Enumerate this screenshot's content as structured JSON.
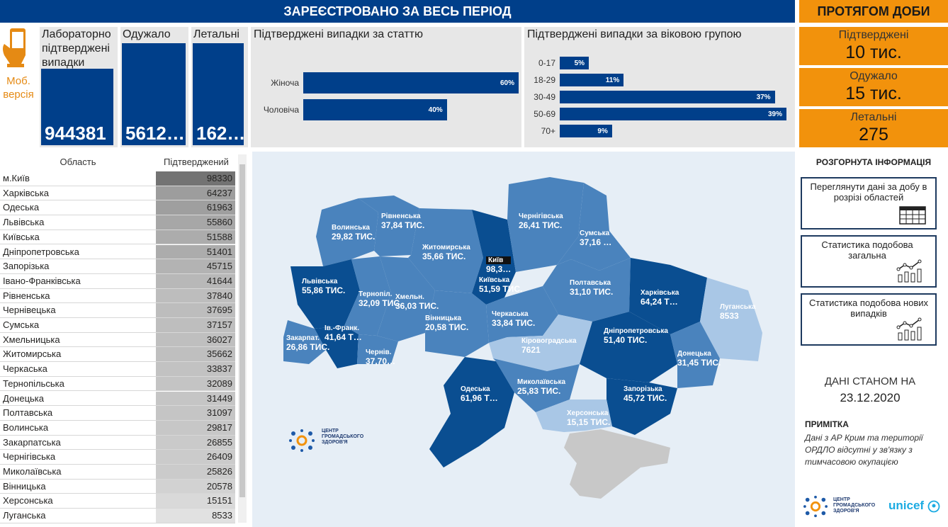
{
  "header": {
    "main_title": "ЗАРЕЄСТРОВАНО ЗА ВЕСЬ ПЕРІОД",
    "day_title": "ПРОТЯГОМ ДОБИ"
  },
  "mobile": {
    "label_line1": "Моб.",
    "label_line2": "версія"
  },
  "kpis": [
    {
      "label": "Лабораторно підтверджені випадки",
      "value": "944381"
    },
    {
      "label": "Одужало",
      "value": "5612…"
    },
    {
      "label": "Летальні",
      "value": "162…"
    }
  ],
  "sex_chart": {
    "title": "Підтверджені випадки за статтю",
    "chart_data": {
      "type": "bar",
      "orientation": "horizontal",
      "categories": [
        "Жіноча",
        "Чоловіча"
      ],
      "values": [
        60,
        40
      ],
      "labels": [
        "60%",
        "40%"
      ],
      "xlim": [
        0,
        60
      ]
    }
  },
  "age_chart": {
    "title": "Підтверджені випадки за віковою групою",
    "chart_data": {
      "type": "bar",
      "orientation": "horizontal",
      "categories": [
        "0-17",
        "18-29",
        "30-49",
        "50-69",
        "70+"
      ],
      "values": [
        5,
        11,
        37,
        39,
        9
      ],
      "labels": [
        "5%",
        "11%",
        "37%",
        "39%",
        "9%"
      ],
      "xlim": [
        0,
        39
      ]
    }
  },
  "daily": [
    {
      "label": "Підтверджені",
      "value": "10 тис."
    },
    {
      "label": "Одужало",
      "value": "15 тис."
    },
    {
      "label": "Летальні",
      "value": "275"
    }
  ],
  "table": {
    "col1": "Область",
    "col2": "Підтверджений",
    "rows": [
      {
        "name": "м.Київ",
        "value": "98330"
      },
      {
        "name": "Харківська",
        "value": "64237"
      },
      {
        "name": "Одеська",
        "value": "61963"
      },
      {
        "name": "Львівська",
        "value": "55860"
      },
      {
        "name": "Київська",
        "value": "51588"
      },
      {
        "name": "Дніпропетровська",
        "value": "51401"
      },
      {
        "name": "Запорізька",
        "value": "45715"
      },
      {
        "name": "Івано-Франківська",
        "value": "41644"
      },
      {
        "name": "Рівненська",
        "value": "37840"
      },
      {
        "name": "Чернівецька",
        "value": "37695"
      },
      {
        "name": "Сумська",
        "value": "37157"
      },
      {
        "name": "Хмельницька",
        "value": "36027"
      },
      {
        "name": "Житомирська",
        "value": "35662"
      },
      {
        "name": "Черкаська",
        "value": "33837"
      },
      {
        "name": "Тернопільська",
        "value": "32089"
      },
      {
        "name": "Донецька",
        "value": "31449"
      },
      {
        "name": "Полтавська",
        "value": "31097"
      },
      {
        "name": "Волинська",
        "value": "29817"
      },
      {
        "name": "Закарпатська",
        "value": "26855"
      },
      {
        "name": "Чернігівська",
        "value": "26409"
      },
      {
        "name": "Миколаївська",
        "value": "25826"
      },
      {
        "name": "Вінницька",
        "value": "20578"
      },
      {
        "name": "Херсонська",
        "value": "15151"
      },
      {
        "name": "Луганська",
        "value": "8533"
      }
    ]
  },
  "map": {
    "regions": [
      {
        "name": "Волинська",
        "value": "29,82 ТИС."
      },
      {
        "name": "Рівненська",
        "value": "37,84 ТИС."
      },
      {
        "name": "Житомирська",
        "value": "35,66 ТИС."
      },
      {
        "name": "Чернігівська",
        "value": "26,41 ТИС."
      },
      {
        "name": "Сумська",
        "value": "37,16 …"
      },
      {
        "name": "Київ",
        "value": "98,3…"
      },
      {
        "name": "Київська",
        "value": "51,59 ТИС."
      },
      {
        "name": "Полтавська",
        "value": "31,10 ТИС."
      },
      {
        "name": "Харківська",
        "value": "64,24 Т…"
      },
      {
        "name": "Луганська",
        "value": "8533"
      },
      {
        "name": "Львівська",
        "value": "55,86 ТИС."
      },
      {
        "name": "Тернопіл.",
        "value": "32,09 ТИС."
      },
      {
        "name": "Хмельн.",
        "value": "36,03 ТИС."
      },
      {
        "name": "Вінницька",
        "value": "20,58 ТИС."
      },
      {
        "name": "Черкаська",
        "value": "33,84 ТИС."
      },
      {
        "name": "Закарпат.",
        "value": "26,86 ТИС."
      },
      {
        "name": "Ів.-Франк.",
        "value": "41,64 Т…"
      },
      {
        "name": "Чернів.",
        "value": "37,70…"
      },
      {
        "name": "Кіровоградська",
        "value": "7621"
      },
      {
        "name": "Дніпропетровська",
        "value": "51,40 ТИС."
      },
      {
        "name": "Донецька",
        "value": "31,45 ТИС."
      },
      {
        "name": "Одеська",
        "value": "61,96 Т…"
      },
      {
        "name": "Миколаївська",
        "value": "25,83 ТИС."
      },
      {
        "name": "Запорізька",
        "value": "45,72 ТИС."
      },
      {
        "name": "Херсонська",
        "value": "15,15 ТИС."
      }
    ],
    "logo_text": [
      "ЦЕНТР",
      "ГРОМАДСЬКОГО",
      "ЗДОРОВ'Я"
    ]
  },
  "info": {
    "title": "РОЗГОРНУТА ІНФОРМАЦІЯ",
    "buttons": [
      {
        "label": "Переглянути дані за добу в розрізі областей",
        "icon": "table-icon"
      },
      {
        "label": "Статистика подобова загальна",
        "icon": "line-chart-icon"
      },
      {
        "label": "Статистика подобова нових випадків",
        "icon": "line-chart-icon"
      }
    ],
    "date_label": "ДАНІ СТАНОМ НА",
    "date_value": "23.12.2020",
    "note_title": "ПРИМІТКА",
    "note_text": "Дані з АР Крим та території ОРДЛО відсутні у зв'язку з тимчасовою окупацією",
    "footer_logo_text": [
      "ЦЕНТР",
      "ГРОМАДСЬКОГО",
      "ЗДОРОВ'Я"
    ],
    "unicef": "unicef"
  },
  "colors": {
    "navy": "#003f8a",
    "orange": "#f2920c",
    "panel_grey": "#e7e7e7"
  }
}
